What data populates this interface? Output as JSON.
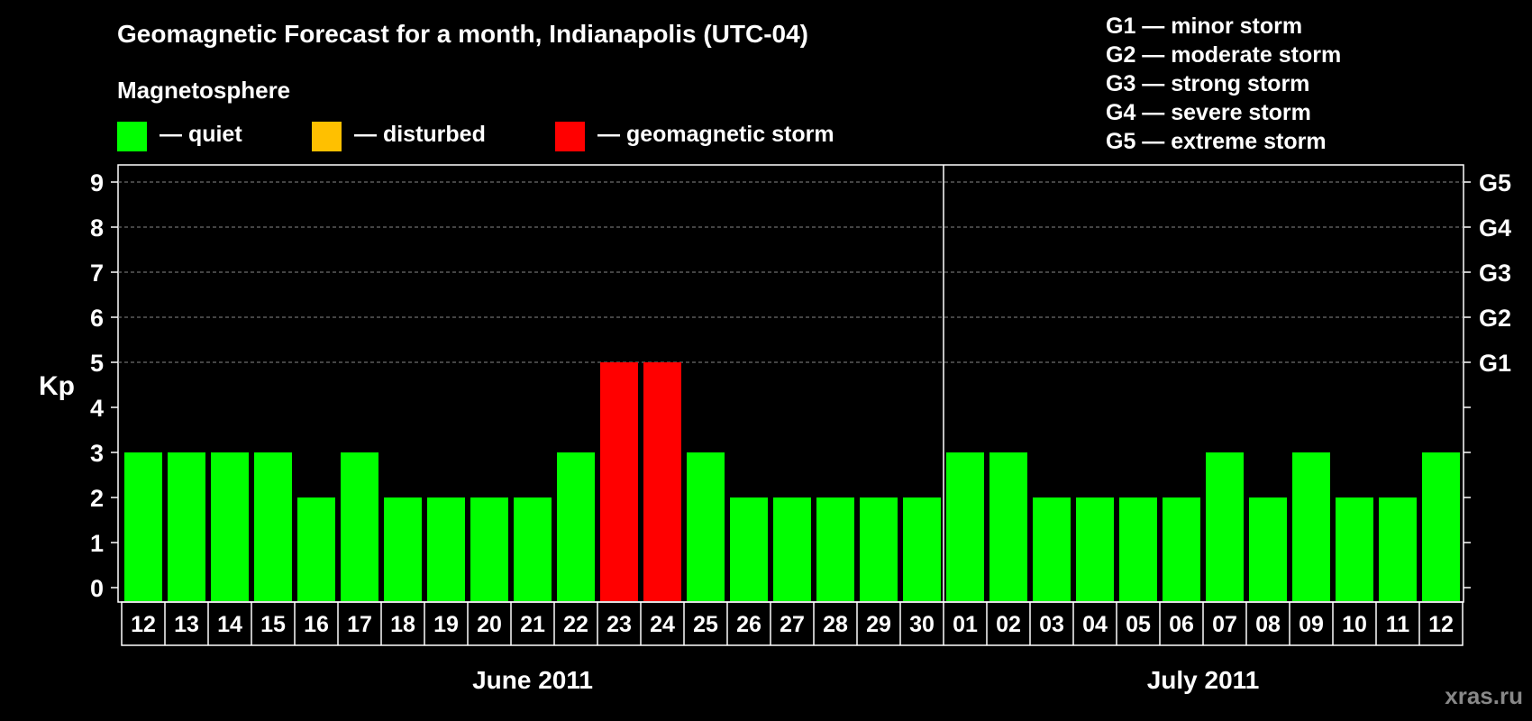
{
  "title": "Geomagnetic Forecast for a month, Indianapolis (UTC-04)",
  "legend": {
    "heading": "Magnetosphere",
    "items": [
      {
        "label": "— quiet",
        "color": "#00ff00"
      },
      {
        "label": "— disturbed",
        "color": "#ffc000"
      },
      {
        "label": "— geomagnetic storm",
        "color": "#ff0000"
      }
    ]
  },
  "storm_scale": [
    "G1 — minor storm",
    "G2 — moderate storm",
    "G3 — strong storm",
    "G4 — severe storm",
    "G5 — extreme storm"
  ],
  "watermark": "xras.ru",
  "chart_data": {
    "type": "bar",
    "ylabel": "Kp",
    "ylim": [
      0,
      9
    ],
    "yticks": [
      "0",
      "1",
      "2",
      "3",
      "4",
      "5",
      "6",
      "7",
      "8",
      "9"
    ],
    "right_axis_labels": [
      {
        "kp": 5,
        "label": "G1"
      },
      {
        "kp": 6,
        "label": "G2"
      },
      {
        "kp": 7,
        "label": "G3"
      },
      {
        "kp": 8,
        "label": "G4"
      },
      {
        "kp": 9,
        "label": "G5"
      }
    ],
    "grid": "dashed horizontal lines at Kp 5–9",
    "categories": [
      "12",
      "13",
      "14",
      "15",
      "16",
      "17",
      "18",
      "19",
      "20",
      "21",
      "22",
      "23",
      "24",
      "25",
      "26",
      "27",
      "28",
      "29",
      "30",
      "01",
      "02",
      "03",
      "04",
      "05",
      "06",
      "07",
      "08",
      "09",
      "10",
      "11",
      "12"
    ],
    "values": [
      3,
      3,
      3,
      3,
      2,
      3,
      2,
      2,
      2,
      2,
      3,
      5,
      5,
      3,
      2,
      2,
      2,
      2,
      2,
      3,
      3,
      2,
      2,
      2,
      2,
      3,
      2,
      3,
      2,
      2,
      3
    ],
    "colors": [
      "#00ff00",
      "#00ff00",
      "#00ff00",
      "#00ff00",
      "#00ff00",
      "#00ff00",
      "#00ff00",
      "#00ff00",
      "#00ff00",
      "#00ff00",
      "#00ff00",
      "#ff0000",
      "#ff0000",
      "#00ff00",
      "#00ff00",
      "#00ff00",
      "#00ff00",
      "#00ff00",
      "#00ff00",
      "#00ff00",
      "#00ff00",
      "#00ff00",
      "#00ff00",
      "#00ff00",
      "#00ff00",
      "#00ff00",
      "#00ff00",
      "#00ff00",
      "#00ff00",
      "#00ff00",
      "#00ff00"
    ],
    "months": [
      {
        "label": "June 2011",
        "start": 0,
        "count": 19
      },
      {
        "label": "July 2011",
        "start": 19,
        "count": 12
      }
    ]
  }
}
